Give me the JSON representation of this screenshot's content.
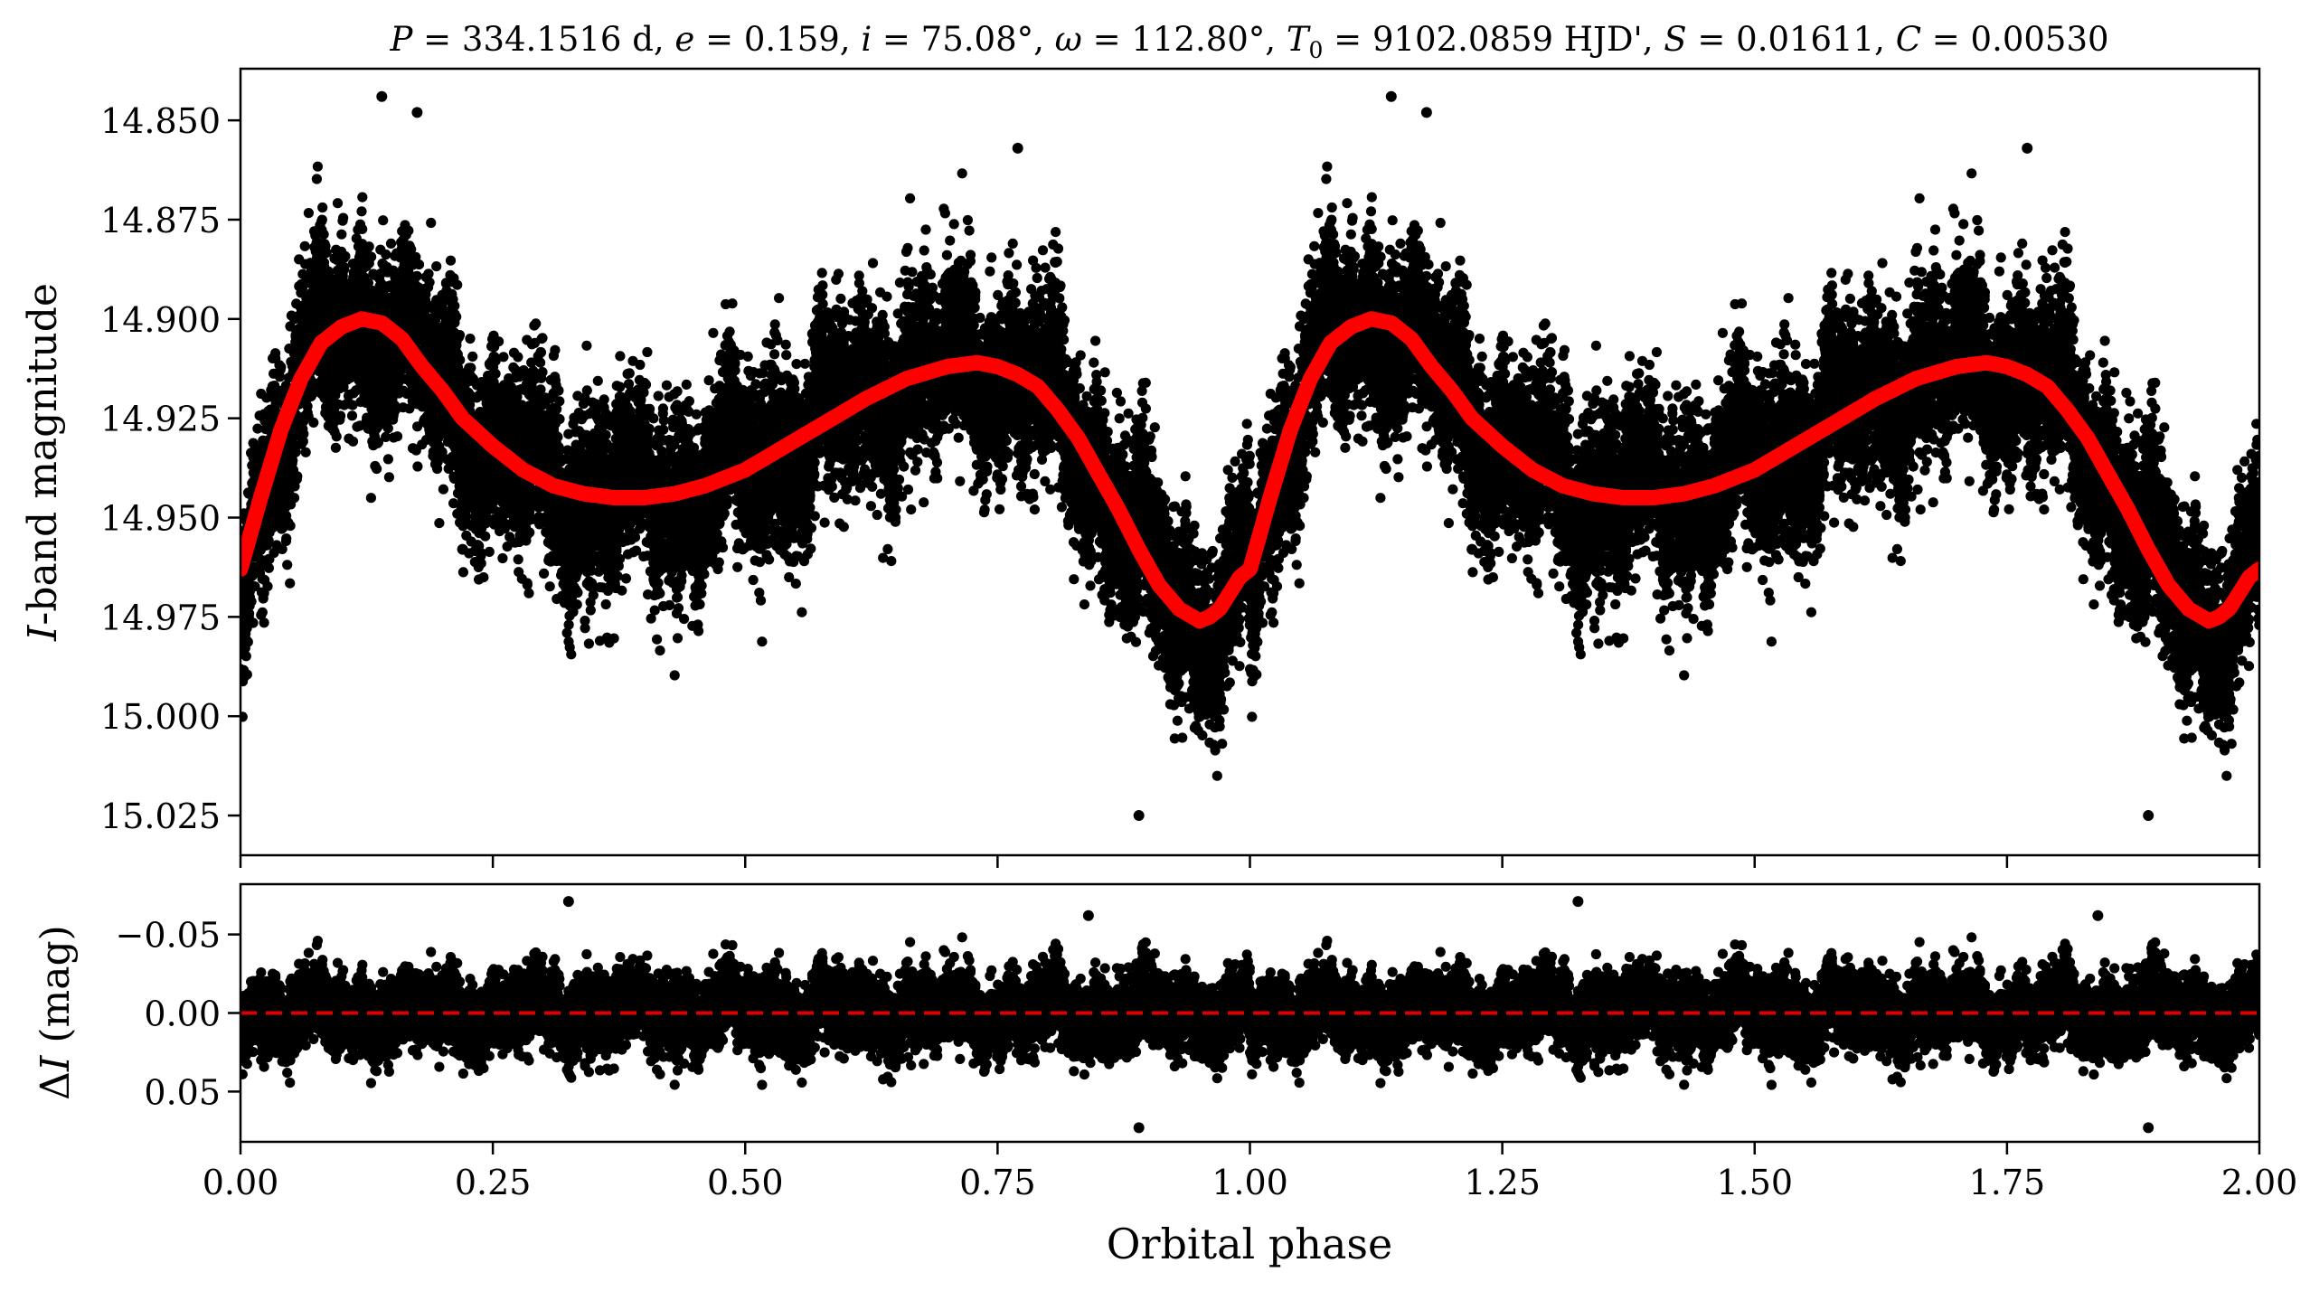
{
  "chart_data": [
    {
      "type": "scatter",
      "panel": "top",
      "title": "P = 334.1516 d, e = 0.159, i = 75.08°, ω = 112.80°, T0 = 9102.0859 HJD', S = 0.01611, C = 0.00530",
      "title_parts": {
        "P_sym": "P",
        "P_val": " = 334.1516 d, ",
        "e_sym": "e",
        "e_val": " = 0.159, ",
        "i_sym": "i",
        "i_val": " = 75.08°, ",
        "w_sym": "ω",
        "w_val": " = 112.80°, ",
        "T_sym": "T",
        "T_sub": "0",
        "T_val": " = 9102.0859 HJD', ",
        "S_sym": "S",
        "S_val": " = 0.01611, ",
        "C_sym": "C",
        "C_val": " = 0.00530"
      },
      "xlabel": "",
      "ylabel": "I-band magnitude",
      "ylabel_parts": {
        "italic": "I",
        "rest": "-band magnitude"
      },
      "xlim": [
        0.0,
        2.0
      ],
      "ylim": [
        15.035,
        14.837
      ],
      "y_inverted": true,
      "yticks": [
        14.85,
        14.875,
        14.9,
        14.925,
        14.95,
        14.975,
        15.0,
        15.025
      ],
      "ytick_labels": [
        "14.850",
        "14.875",
        "14.900",
        "14.925",
        "14.950",
        "14.975",
        "15.000",
        "15.025"
      ],
      "grid": false,
      "series": [
        {
          "kind": "points",
          "color": "#000000",
          "n_points": 14000,
          "scatter_sigma": 0.014,
          "phase_min": 0.0,
          "phase_max": 2.0,
          "outliers": [
            {
              "x": 0.89,
              "y": 15.025
            },
            {
              "x": 1.89,
              "y": 15.025
            },
            {
              "x": 0.14,
              "y": 14.844
            },
            {
              "x": 1.14,
              "y": 14.844
            },
            {
              "x": 0.175,
              "y": 14.848
            },
            {
              "x": 1.175,
              "y": 14.848
            },
            {
              "x": 0.77,
              "y": 14.857
            },
            {
              "x": 1.77,
              "y": 14.857
            },
            {
              "x": 0.22,
              "y": 14.958
            },
            {
              "x": 1.22,
              "y": 14.958
            }
          ]
        },
        {
          "kind": "model-curve",
          "color": "#ff0000",
          "x": [
            0.0,
            0.02,
            0.04,
            0.06,
            0.08,
            0.1,
            0.12,
            0.14,
            0.16,
            0.18,
            0.2,
            0.22,
            0.25,
            0.28,
            0.31,
            0.34,
            0.37,
            0.4,
            0.43,
            0.46,
            0.5,
            0.54,
            0.58,
            0.62,
            0.66,
            0.7,
            0.73,
            0.75,
            0.77,
            0.79,
            0.81,
            0.83,
            0.85,
            0.87,
            0.89,
            0.91,
            0.93,
            0.95,
            0.96,
            0.97,
            0.98,
            0.99,
            1.0,
            1.02,
            1.04,
            1.06,
            1.08,
            1.1,
            1.12,
            1.14,
            1.16,
            1.18,
            1.2,
            1.22,
            1.25,
            1.28,
            1.31,
            1.34,
            1.37,
            1.4,
            1.43,
            1.46,
            1.5,
            1.54,
            1.58,
            1.62,
            1.66,
            1.7,
            1.73,
            1.75,
            1.77,
            1.79,
            1.81,
            1.83,
            1.85,
            1.87,
            1.89,
            1.91,
            1.93,
            1.95,
            1.96,
            1.97,
            1.98,
            1.99,
            2.0
          ],
          "y": [
            14.963,
            14.945,
            14.928,
            14.915,
            14.906,
            14.902,
            14.9,
            14.901,
            14.905,
            14.912,
            14.918,
            14.925,
            14.932,
            14.938,
            14.942,
            14.944,
            14.945,
            14.945,
            14.944,
            14.942,
            14.938,
            14.932,
            14.926,
            14.92,
            14.915,
            14.912,
            14.911,
            14.912,
            14.914,
            14.917,
            14.923,
            14.93,
            14.939,
            14.948,
            14.958,
            14.967,
            14.973,
            14.976,
            14.975,
            14.973,
            14.969,
            14.965,
            14.963,
            14.945,
            14.928,
            14.915,
            14.906,
            14.902,
            14.9,
            14.901,
            14.905,
            14.912,
            14.918,
            14.925,
            14.932,
            14.938,
            14.942,
            14.944,
            14.945,
            14.945,
            14.944,
            14.942,
            14.938,
            14.932,
            14.926,
            14.92,
            14.915,
            14.912,
            14.911,
            14.912,
            14.914,
            14.917,
            14.923,
            14.93,
            14.939,
            14.948,
            14.958,
            14.967,
            14.973,
            14.976,
            14.975,
            14.973,
            14.969,
            14.965,
            14.963
          ]
        }
      ]
    },
    {
      "type": "scatter",
      "panel": "bottom",
      "title": "",
      "xlabel": "Orbital phase",
      "ylabel": "ΔI (mag)",
      "ylabel_parts": {
        "delta": "Δ",
        "italic": "I",
        "rest": " (mag)"
      },
      "xlim": [
        0.0,
        2.0
      ],
      "ylim": [
        0.082,
        -0.082
      ],
      "y_inverted": true,
      "xticks": [
        0.0,
        0.25,
        0.5,
        0.75,
        1.0,
        1.25,
        1.5,
        1.75,
        2.0
      ],
      "xtick_labels": [
        "0.00",
        "0.25",
        "0.50",
        "0.75",
        "1.00",
        "1.25",
        "1.50",
        "1.75",
        "2.00"
      ],
      "yticks": [
        -0.05,
        0.0,
        0.05
      ],
      "ytick_labels": [
        "−0.05",
        "0.00",
        "0.05"
      ],
      "grid": false,
      "series": [
        {
          "kind": "residual-points",
          "color": "#000000",
          "n_points": 14000,
          "scatter_sigma": 0.014,
          "outliers": [
            {
              "x": 0.325,
              "y": -0.071
            },
            {
              "x": 1.325,
              "y": -0.071
            },
            {
              "x": 0.89,
              "y": 0.073
            },
            {
              "x": 1.89,
              "y": 0.073
            },
            {
              "x": 0.84,
              "y": -0.062
            },
            {
              "x": 1.84,
              "y": -0.062
            }
          ]
        },
        {
          "kind": "zero-line",
          "style": "dashed",
          "color": "#dd0000",
          "y": 0.0
        }
      ]
    }
  ]
}
